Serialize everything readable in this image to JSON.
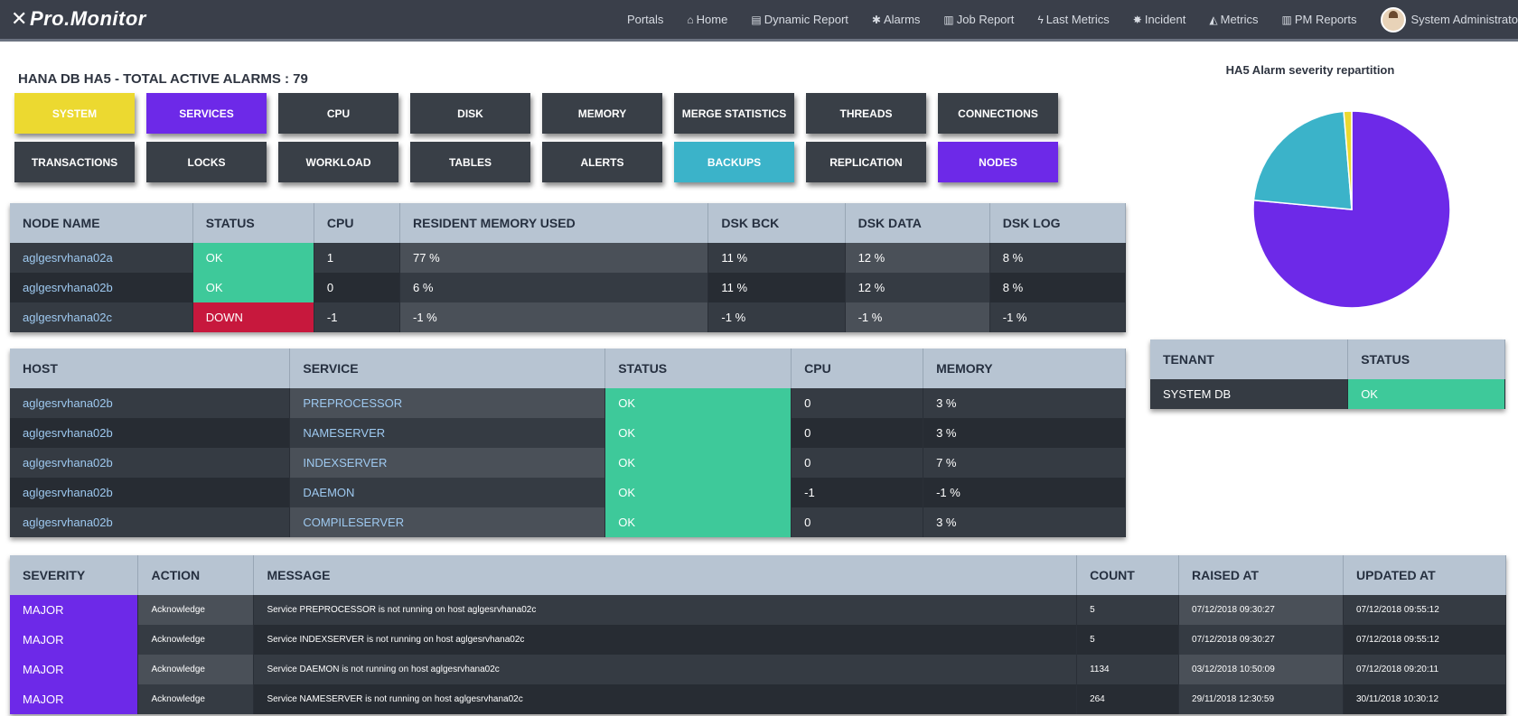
{
  "app": {
    "logo": "Pro.Monitor"
  },
  "nav": [
    {
      "label": "Portals",
      "icon": ""
    },
    {
      "label": "Home",
      "icon": "⌂"
    },
    {
      "label": "Dynamic Report",
      "icon": "▤"
    },
    {
      "label": "Alarms",
      "icon": "✱"
    },
    {
      "label": "Job Report",
      "icon": "▥"
    },
    {
      "label": "Last Metrics",
      "icon": "ϟ"
    },
    {
      "label": "Incident",
      "icon": "✸"
    },
    {
      "label": "Metrics",
      "icon": "◭"
    },
    {
      "label": "PM Reports",
      "icon": "▥"
    }
  ],
  "user": {
    "name": "System Administrato"
  },
  "page_title": "HANA DB HA5 - TOTAL ACTIVE ALARMS : 79",
  "colors": {
    "yellow": "#ecd930",
    "purple": "#6d29e8",
    "dark": "#393f47",
    "teal": "#3bb3c9",
    "ok": "#3ec99a",
    "down": "#c7183d"
  },
  "tiles": [
    {
      "label": "SYSTEM",
      "color": "yellow"
    },
    {
      "label": "SERVICES",
      "color": "purple"
    },
    {
      "label": "CPU",
      "color": "dark"
    },
    {
      "label": "DISK",
      "color": "dark"
    },
    {
      "label": "MEMORY",
      "color": "dark"
    },
    {
      "label": "MERGE STATISTICS",
      "color": "dark"
    },
    {
      "label": "THREADS",
      "color": "dark"
    },
    {
      "label": "CONNECTIONS",
      "color": "dark"
    },
    {
      "label": "TRANSACTIONS",
      "color": "dark"
    },
    {
      "label": "LOCKS",
      "color": "dark"
    },
    {
      "label": "WORKLOAD",
      "color": "dark"
    },
    {
      "label": "TABLES",
      "color": "dark"
    },
    {
      "label": "ALERTS",
      "color": "dark"
    },
    {
      "label": "BACKUPS",
      "color": "teal"
    },
    {
      "label": "REPLICATION",
      "color": "dark"
    },
    {
      "label": "NODES",
      "color": "purple"
    }
  ],
  "nodes": {
    "headers": [
      "NODE NAME",
      "STATUS",
      "CPU",
      "RESIDENT MEMORY USED",
      "DSK BCK",
      "DSK DATA",
      "DSK LOG"
    ],
    "rows": [
      [
        "aglgesrvhana02a",
        "OK",
        "1",
        "77 %",
        "11 %",
        "12 %",
        "8 %"
      ],
      [
        "aglgesrvhana02b",
        "OK",
        "0",
        "6 %",
        "11 %",
        "12 %",
        "8 %"
      ],
      [
        "aglgesrvhana02c",
        "DOWN",
        "-1",
        "-1 %",
        "-1 %",
        "-1 %",
        "-1 %"
      ]
    ]
  },
  "services": {
    "headers": [
      "HOST",
      "SERVICE",
      "STATUS",
      "CPU",
      "MEMORY"
    ],
    "rows": [
      [
        "aglgesrvhana02b",
        "PREPROCESSOR",
        "OK",
        "0",
        "3 %"
      ],
      [
        "aglgesrvhana02b",
        "NAMESERVER",
        "OK",
        "0",
        "3 %"
      ],
      [
        "aglgesrvhana02b",
        "INDEXSERVER",
        "OK",
        "0",
        "7 %"
      ],
      [
        "aglgesrvhana02b",
        "DAEMON",
        "OK",
        "-1",
        "-1 %"
      ],
      [
        "aglgesrvhana02b",
        "COMPILESERVER",
        "OK",
        "0",
        "3 %"
      ]
    ]
  },
  "tenants": {
    "headers": [
      "TENANT",
      "STATUS"
    ],
    "rows": [
      [
        "SYSTEM DB",
        "OK"
      ]
    ]
  },
  "alarms": {
    "headers": [
      "SEVERITY",
      "ACTION",
      "MESSAGE",
      "COUNT",
      "RAISED AT",
      "UPDATED AT"
    ],
    "rows": [
      [
        "MAJOR",
        "Acknowledge",
        "Service PREPROCESSOR is not running on host aglgesrvhana02c",
        "5",
        "07/12/2018 09:30:27",
        "07/12/2018 09:55:12"
      ],
      [
        "MAJOR",
        "Acknowledge",
        "Service INDEXSERVER is not running on host aglgesrvhana02c",
        "5",
        "07/12/2018 09:30:27",
        "07/12/2018 09:55:12"
      ],
      [
        "MAJOR",
        "Acknowledge",
        "Service DAEMON is not running on host aglgesrvhana02c",
        "1134",
        "03/12/2018 10:50:09",
        "07/12/2018 09:20:11"
      ],
      [
        "MAJOR",
        "Acknowledge",
        "Service NAMESERVER is not running on host aglgesrvhana02c",
        "264",
        "29/11/2018 12:30:59",
        "30/11/2018 10:30:12"
      ]
    ]
  },
  "chart_data": {
    "type": "pie",
    "title": "HA5 Alarm severity repartition",
    "slices": [
      {
        "value": 76.5,
        "color": "#6d29e8"
      },
      {
        "value": 22.2,
        "color": "#3bb3c9"
      },
      {
        "value": 1.3,
        "color": "#ecd930"
      }
    ],
    "start_angle_deg": 0
  }
}
